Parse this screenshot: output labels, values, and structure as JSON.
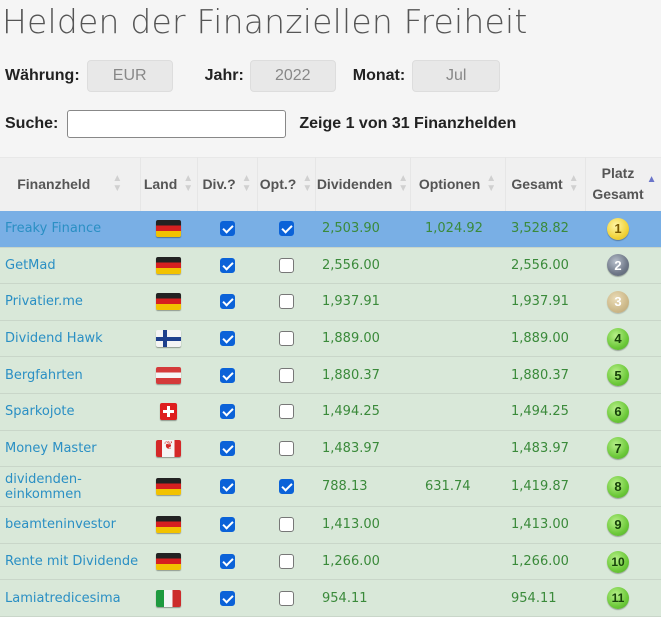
{
  "page": {
    "title": "Helden der Finanziellen Freiheit"
  },
  "filters": {
    "currency_label": "Währung:",
    "currency_value": "EUR",
    "year_label": "Jahr:",
    "year_value": "2022",
    "month_label": "Monat:",
    "month_value": "Jul"
  },
  "search": {
    "label": "Suche:",
    "value": "",
    "placeholder": "",
    "result_text": "Zeige 1 von 31 Finanzhelden"
  },
  "table": {
    "columns": [
      {
        "label": "Finanzheld",
        "sortable": true
      },
      {
        "label": "Land",
        "sortable": true
      },
      {
        "label": "Div.?",
        "sortable": true
      },
      {
        "label": "Opt.?",
        "sortable": true
      },
      {
        "label": "Dividenden",
        "sortable": true
      },
      {
        "label": "Optionen",
        "sortable": true
      },
      {
        "label": "Gesamt",
        "sortable": true
      },
      {
        "label": "Platz Gesamt",
        "label_line1": "Platz",
        "label_line2": "Gesamt",
        "sortable": true,
        "sort": "ascending"
      }
    ],
    "rows": [
      {
        "name": "Freaky Finance",
        "country": "DE",
        "flag_icon": "flag-germany-icon",
        "div": true,
        "opt": true,
        "dividends": "2,503.90",
        "options": "1,024.92",
        "total": "3,528.82",
        "rank": "1",
        "rank_style": "gold",
        "selected": true
      },
      {
        "name": "GetMad",
        "country": "DE",
        "flag_icon": "flag-germany-icon",
        "div": true,
        "opt": false,
        "dividends": "2,556.00",
        "options": "",
        "total": "2,556.00",
        "rank": "2",
        "rank_style": "silver"
      },
      {
        "name": "Privatier.me",
        "country": "DE",
        "flag_icon": "flag-germany-icon",
        "div": true,
        "opt": false,
        "dividends": "1,937.91",
        "options": "",
        "total": "1,937.91",
        "rank": "3",
        "rank_style": "bronze"
      },
      {
        "name": "Dividend Hawk",
        "country": "FI",
        "flag_icon": "flag-finland-icon",
        "div": true,
        "opt": false,
        "dividends": "1,889.00",
        "options": "",
        "total": "1,889.00",
        "rank": "4",
        "rank_style": "green"
      },
      {
        "name": "Bergfahrten",
        "country": "AT",
        "flag_icon": "flag-austria-icon",
        "div": true,
        "opt": false,
        "dividends": "1,880.37",
        "options": "",
        "total": "1,880.37",
        "rank": "5",
        "rank_style": "green"
      },
      {
        "name": "Sparkojote",
        "country": "CH",
        "flag_icon": "flag-switzerland-icon",
        "div": true,
        "opt": false,
        "dividends": "1,494.25",
        "options": "",
        "total": "1,494.25",
        "rank": "6",
        "rank_style": "green"
      },
      {
        "name": "Money Master",
        "country": "CA",
        "flag_icon": "flag-canada-icon",
        "div": true,
        "opt": false,
        "dividends": "1,483.97",
        "options": "",
        "total": "1,483.97",
        "rank": "7",
        "rank_style": "green"
      },
      {
        "name": "dividenden-einkommen",
        "name_line1": "dividenden-",
        "name_line2": "einkommen",
        "country": "DE",
        "flag_icon": "flag-germany-icon",
        "div": true,
        "opt": true,
        "dividends": "788.13",
        "options": "631.74",
        "total": "1,419.87",
        "rank": "8",
        "rank_style": "green"
      },
      {
        "name": "beamteninvestor",
        "country": "DE",
        "flag_icon": "flag-germany-icon",
        "div": true,
        "opt": false,
        "dividends": "1,413.00",
        "options": "",
        "total": "1,413.00",
        "rank": "9",
        "rank_style": "green"
      },
      {
        "name": "Rente mit Dividende",
        "country": "DE",
        "flag_icon": "flag-germany-icon",
        "div": true,
        "opt": false,
        "dividends": "1,266.00",
        "options": "",
        "total": "1,266.00",
        "rank": "10",
        "rank_style": "green"
      },
      {
        "name": "Lamiatredicesima",
        "country": "IT",
        "flag_icon": "flag-italy-icon",
        "div": true,
        "opt": false,
        "dividends": "954.11",
        "options": "",
        "total": "954.11",
        "rank": "11",
        "rank_style": "green"
      }
    ]
  },
  "colors": {
    "selected_row": "#79afe5",
    "row_background": "#d9e8d9",
    "link": "#2a8fc4",
    "number": "#3a8a3a",
    "checkbox": "#0b62d8"
  }
}
